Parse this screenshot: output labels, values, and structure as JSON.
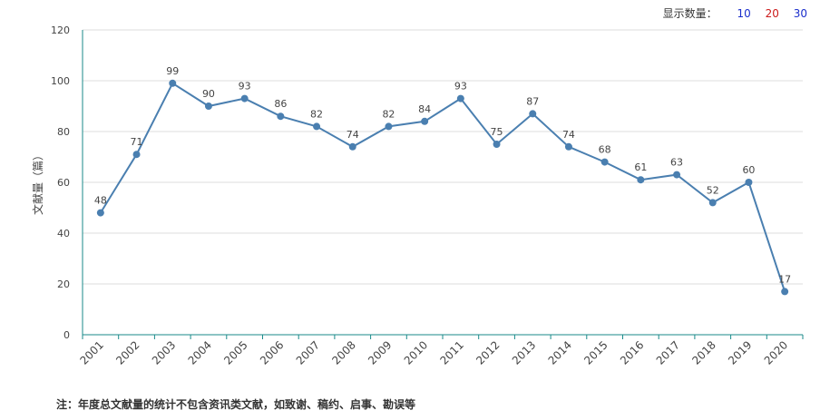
{
  "display_count": {
    "label": "显示数量：",
    "options": [
      {
        "text": "10",
        "color": "#1a2ecc"
      },
      {
        "text": "20",
        "color": "#cc1a1a"
      },
      {
        "text": "30",
        "color": "#1a2ecc"
      }
    ]
  },
  "note": "注：年度总文献量的统计不包含资讯类文献，如致谢、稿约、启事、勘误等",
  "chart_data": {
    "type": "line",
    "categories": [
      "2001",
      "2002",
      "2003",
      "2004",
      "2005",
      "2006",
      "2007",
      "2008",
      "2009",
      "2010",
      "2011",
      "2012",
      "2013",
      "2014",
      "2015",
      "2016",
      "2017",
      "2018",
      "2019",
      "2020"
    ],
    "series": [
      {
        "values": [
          48,
          71,
          99,
          90,
          93,
          86,
          82,
          74,
          82,
          84,
          93,
          75,
          87,
          74,
          68,
          61,
          63,
          52,
          60,
          17
        ]
      }
    ],
    "ylabel": "文献量（篇）",
    "xlabel": "",
    "ylim": [
      0,
      120
    ],
    "yticks": [
      0,
      20,
      40,
      60,
      80,
      100,
      120
    ],
    "grid": true,
    "line_color": "#4a7fb0",
    "axis_color": "#1a8a8a",
    "grid_color": "#dddddd"
  }
}
